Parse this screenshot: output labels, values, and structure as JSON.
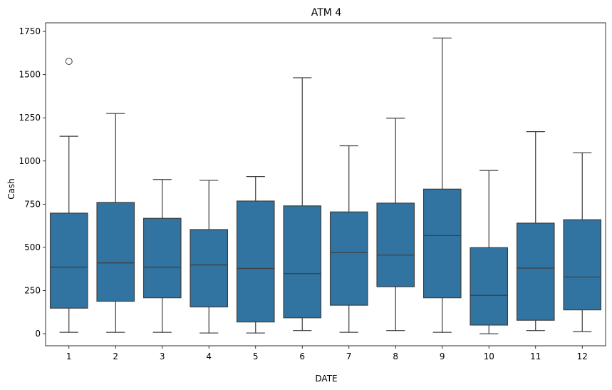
{
  "chart_data": {
    "type": "box",
    "title": "ATM 4",
    "xlabel": "DATE",
    "ylabel": "Cash",
    "categories": [
      "1",
      "2",
      "3",
      "4",
      "5",
      "6",
      "7",
      "8",
      "9",
      "10",
      "11",
      "12"
    ],
    "yticks": [
      0,
      250,
      500,
      750,
      1000,
      1250,
      1500,
      1750
    ],
    "ylim": [
      -70,
      1800
    ],
    "box_color": "#3274a1",
    "line_color": "#3d3d3d",
    "boxes": [
      {
        "category": "1",
        "whisker_low": 8,
        "q1": 148,
        "median": 385,
        "q3": 698,
        "whisker_high": 1143,
        "outliers": [
          1577
        ]
      },
      {
        "category": "2",
        "whisker_low": 8,
        "q1": 188,
        "median": 410,
        "q3": 760,
        "whisker_high": 1275,
        "outliers": []
      },
      {
        "category": "3",
        "whisker_low": 8,
        "q1": 208,
        "median": 385,
        "q3": 668,
        "whisker_high": 893,
        "outliers": []
      },
      {
        "category": "4",
        "whisker_low": 4,
        "q1": 155,
        "median": 398,
        "q3": 603,
        "whisker_high": 888,
        "outliers": []
      },
      {
        "category": "5",
        "whisker_low": 4,
        "q1": 68,
        "median": 378,
        "q3": 768,
        "whisker_high": 910,
        "outliers": []
      },
      {
        "category": "6",
        "whisker_low": 18,
        "q1": 92,
        "median": 348,
        "q3": 740,
        "whisker_high": 1482,
        "outliers": []
      },
      {
        "category": "7",
        "whisker_low": 8,
        "q1": 165,
        "median": 470,
        "q3": 705,
        "whisker_high": 1088,
        "outliers": []
      },
      {
        "category": "8",
        "whisker_low": 18,
        "q1": 272,
        "median": 455,
        "q3": 756,
        "whisker_high": 1248,
        "outliers": []
      },
      {
        "category": "9",
        "whisker_low": 8,
        "q1": 208,
        "median": 568,
        "q3": 837,
        "whisker_high": 1712,
        "outliers": []
      },
      {
        "category": "10",
        "whisker_low": 0,
        "q1": 50,
        "median": 222,
        "q3": 498,
        "whisker_high": 945,
        "outliers": []
      },
      {
        "category": "11",
        "whisker_low": 18,
        "q1": 78,
        "median": 380,
        "q3": 640,
        "whisker_high": 1170,
        "outliers": []
      },
      {
        "category": "12",
        "whisker_low": 12,
        "q1": 138,
        "median": 328,
        "q3": 660,
        "whisker_high": 1048,
        "outliers": []
      }
    ]
  }
}
